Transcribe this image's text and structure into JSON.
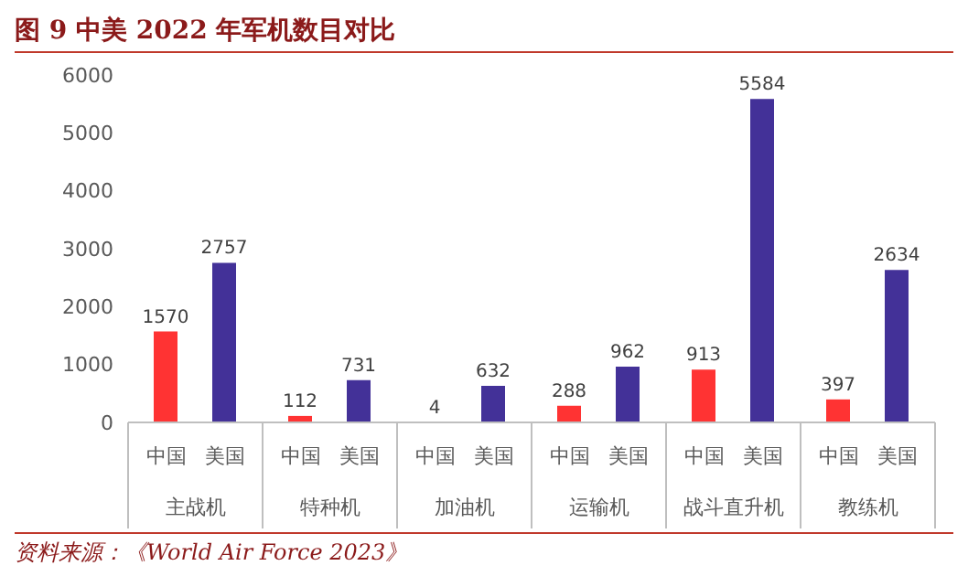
{
  "chart_data": {
    "type": "bar",
    "title": "图 9 中美 2022 年军机数目对比",
    "categories": [
      "主战机",
      "特种机",
      "加油机",
      "运输机",
      "战斗直升机",
      "教练机"
    ],
    "series": [
      {
        "name": "中国",
        "color": "#ff3333",
        "values": [
          1570,
          112,
          4,
          288,
          913,
          397
        ]
      },
      {
        "name": "美国",
        "color": "#433198",
        "values": [
          2757,
          731,
          632,
          962,
          5584,
          2634
        ]
      }
    ],
    "ylim": [
      0,
      6000
    ],
    "yticks": [
      0,
      1000,
      2000,
      3000,
      4000,
      5000,
      6000
    ],
    "grid": false,
    "legend": false,
    "data_labels": true,
    "annotations": [
      "资料来源：《World Air Force 2023》"
    ]
  }
}
